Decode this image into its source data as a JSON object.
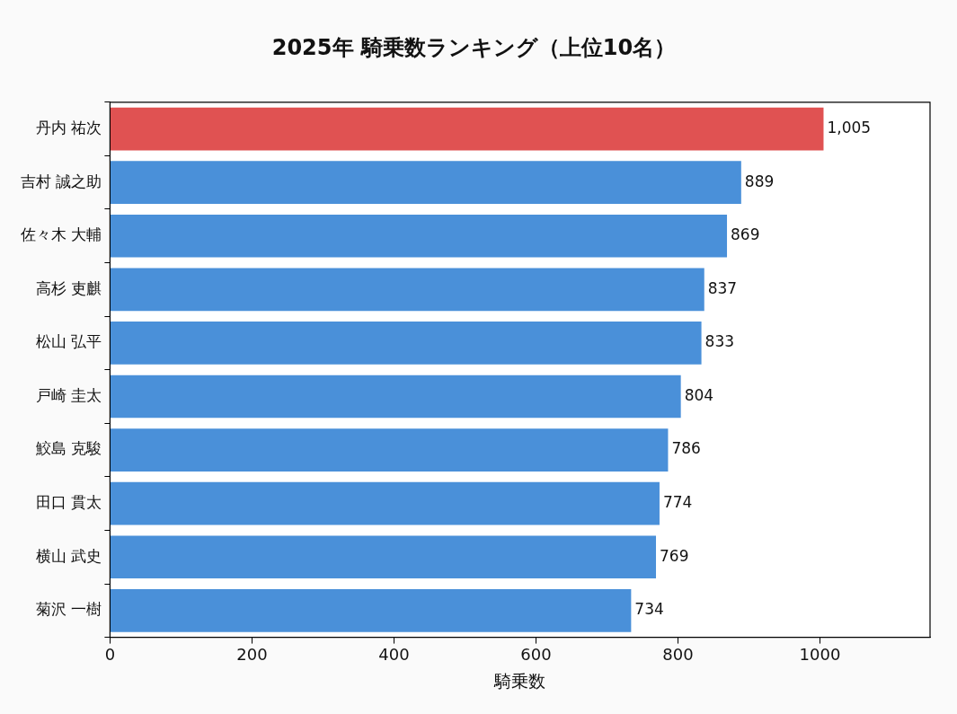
{
  "chart_data": {
    "type": "bar",
    "orientation": "horizontal",
    "title": "2025年 騎乗数ランキング（上位10名）",
    "xlabel": "騎乗数",
    "categories": [
      "丹内 祐次",
      "吉村 誠之助",
      "佐々木 大輔",
      "高杉 吏麒",
      "松山 弘平",
      "戸崎 圭太",
      "鮫島 克駿",
      "田口 貫太",
      "横山 武史",
      "菊沢 一樹"
    ],
    "values": [
      1005,
      889,
      869,
      837,
      833,
      804,
      786,
      774,
      769,
      734
    ],
    "colors": [
      "#e05252",
      "#4a90d9",
      "#4a90d9",
      "#4a90d9",
      "#4a90d9",
      "#4a90d9",
      "#4a90d9",
      "#4a90d9",
      "#4a90d9",
      "#4a90d9"
    ],
    "value_labels": [
      "1,005",
      "889",
      "869",
      "837",
      "833",
      "804",
      "786",
      "774",
      "769",
      "734"
    ],
    "xlim": [
      0,
      1155
    ],
    "xticks": [
      0,
      200,
      400,
      600,
      800,
      1000
    ],
    "grid": false,
    "legend": false
  }
}
